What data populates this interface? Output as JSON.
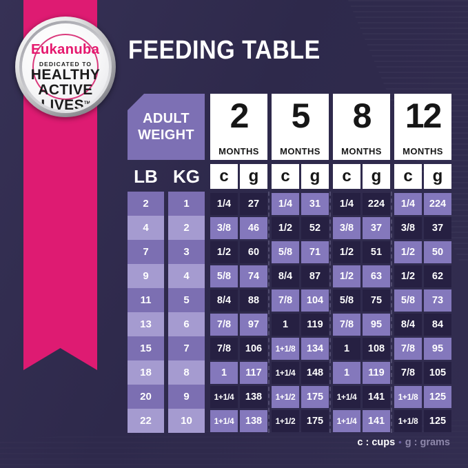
{
  "badge": {
    "brand": "Eukanuba",
    "tagline": "DEDICATED TO",
    "line1": "HEALTHY",
    "line2": "ACTIVE",
    "line3": "LIVES",
    "trademark": "TM"
  },
  "title": "FEEDING TABLE",
  "table": {
    "corner_header": {
      "line1": "ADULT",
      "line2": "WEIGHT"
    },
    "month_columns": [
      {
        "number": "2",
        "label": "MONTHS"
      },
      {
        "number": "5",
        "label": "MONTHS"
      },
      {
        "number": "8",
        "label": "MONTHS"
      },
      {
        "number": "12",
        "label": "MONTHS"
      }
    ],
    "unit_headers": {
      "lb": "LB",
      "kg": "KG",
      "cups": "c",
      "grams": "g"
    },
    "rows": [
      {
        "lb": "2",
        "kg": "1",
        "values": [
          [
            "1/4",
            "27"
          ],
          [
            "1/4",
            "31"
          ],
          [
            "1/4",
            "224"
          ],
          [
            "1/4",
            "224"
          ]
        ]
      },
      {
        "lb": "4",
        "kg": "2",
        "values": [
          [
            "3/8",
            "46"
          ],
          [
            "1/2",
            "52"
          ],
          [
            "3/8",
            "37"
          ],
          [
            "3/8",
            "37"
          ]
        ]
      },
      {
        "lb": "7",
        "kg": "3",
        "values": [
          [
            "1/2",
            "60"
          ],
          [
            "5/8",
            "71"
          ],
          [
            "1/2",
            "51"
          ],
          [
            "1/2",
            "50"
          ]
        ]
      },
      {
        "lb": "9",
        "kg": "4",
        "values": [
          [
            "5/8",
            "74"
          ],
          [
            "8/4",
            "87"
          ],
          [
            "1/2",
            "63"
          ],
          [
            "1/2",
            "62"
          ]
        ]
      },
      {
        "lb": "11",
        "kg": "5",
        "values": [
          [
            "8/4",
            "88"
          ],
          [
            "7/8",
            "104"
          ],
          [
            "5/8",
            "75"
          ],
          [
            "5/8",
            "73"
          ]
        ]
      },
      {
        "lb": "13",
        "kg": "6",
        "values": [
          [
            "7/8",
            "97"
          ],
          [
            "1",
            "119"
          ],
          [
            "7/8",
            "95"
          ],
          [
            "8/4",
            "84"
          ]
        ]
      },
      {
        "lb": "15",
        "kg": "7",
        "values": [
          [
            "7/8",
            "106"
          ],
          [
            "1+1/8",
            "134"
          ],
          [
            "1",
            "108"
          ],
          [
            "7/8",
            "95"
          ]
        ]
      },
      {
        "lb": "18",
        "kg": "8",
        "values": [
          [
            "1",
            "117"
          ],
          [
            "1+1/4",
            "148"
          ],
          [
            "1",
            "119"
          ],
          [
            "7/8",
            "105"
          ]
        ]
      },
      {
        "lb": "20",
        "kg": "9",
        "values": [
          [
            "1+1/4",
            "138"
          ],
          [
            "1+1/2",
            "175"
          ],
          [
            "1+1/4",
            "141"
          ],
          [
            "1+1/8",
            "125"
          ]
        ]
      },
      {
        "lb": "22",
        "kg": "10",
        "values": [
          [
            "1+1/4",
            "138"
          ],
          [
            "1+1/2",
            "175"
          ],
          [
            "1+1/4",
            "141"
          ],
          [
            "1+1/8",
            "125"
          ]
        ]
      }
    ]
  },
  "legend": {
    "cups": "c : cups",
    "separator": "•",
    "grams": "g : grams"
  },
  "colors": {
    "background": "#2e294b",
    "ribbon_pink": "#de1b72",
    "brand_pink": "#e5186e",
    "cell_dark": "#262042",
    "cell_light": "#8478bc",
    "lbkg_dark": "#7c6fb2",
    "lbkg_light": "#a59bd0",
    "corner_box": "#7d70b4",
    "header_box": "#ffffff",
    "legend_muted": "#8d87aa"
  }
}
